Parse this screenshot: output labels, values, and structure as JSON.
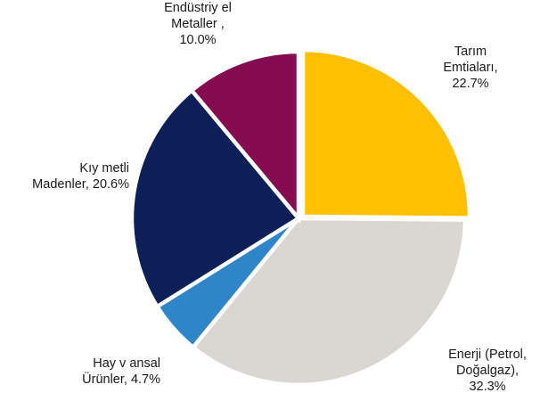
{
  "chart_data": {
    "type": "pie",
    "title": "",
    "unit": "%",
    "start_angle_deg": 0,
    "direction": "clockwise",
    "slices": [
      {
        "key": "tarim",
        "value": 22.7,
        "color": "#FFC000",
        "label_lines": [
          "Tarım",
          "Emtiaları,",
          "22.7%"
        ],
        "label_anchor": "middle"
      },
      {
        "key": "enerji",
        "value": 32.3,
        "color": "#DAD6D1",
        "label_lines": [
          "Enerji (Petrol,",
          "Doğalgaz),",
          "32.3%"
        ],
        "label_anchor": "middle"
      },
      {
        "key": "hayvansal",
        "value": 4.7,
        "color": "#2E86C8",
        "label_lines": [
          "Hay v ansal",
          "Ürünler,  4.7%"
        ],
        "label_anchor": "end"
      },
      {
        "key": "kiymetli",
        "value": 20.6,
        "color": "#0C1F57",
        "label_lines": [
          "Kıy metli",
          "Madenler,  20.6%"
        ],
        "label_anchor": "end"
      },
      {
        "key": "endustriyel",
        "value": 10.0,
        "color": "#840B4F",
        "label_lines": [
          "Endüstriy el",
          "Metaller  ,",
          "10.0%"
        ],
        "label_anchor": "middle"
      }
    ]
  }
}
